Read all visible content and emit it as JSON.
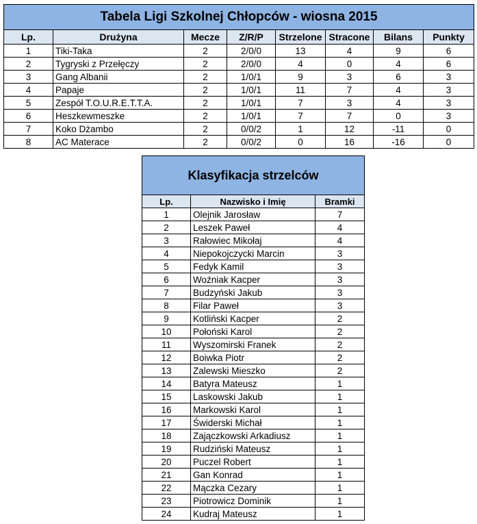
{
  "league": {
    "title": "Tabela Ligi Szkolnej Chłopców - wiosna 2015",
    "headers": [
      "Lp.",
      "Drużyna",
      "Mecze",
      "Z/R/P",
      "Strzelone",
      "Stracone",
      "Bilans",
      "Punkty"
    ],
    "rows": [
      [
        "1",
        "Tiki-Taka",
        "2",
        "2/0/0",
        "13",
        "4",
        "9",
        "6"
      ],
      [
        "2",
        "Tygryski z Przełęczy",
        "2",
        "2/0/0",
        "4",
        "0",
        "4",
        "6"
      ],
      [
        "3",
        "Gang Albanii",
        "2",
        "1/0/1",
        "9",
        "3",
        "6",
        "3"
      ],
      [
        "4",
        "Papaje",
        "2",
        "1/0/1",
        "11",
        "7",
        "4",
        "3"
      ],
      [
        "5",
        "Zespół T.O.U.R.E.T.T.A.",
        "2",
        "1/0/1",
        "7",
        "3",
        "4",
        "3"
      ],
      [
        "6",
        "Heszkewmeszke",
        "2",
        "1/0/1",
        "7",
        "7",
        "0",
        "3"
      ],
      [
        "7",
        "Koko Dżambo",
        "2",
        "0/0/2",
        "1",
        "12",
        "-11",
        "0"
      ],
      [
        "8",
        "AC Materace",
        "2",
        "0/0/2",
        "0",
        "16",
        "-16",
        "0"
      ]
    ]
  },
  "scorers": {
    "title": "Klasyfikacja strzelców",
    "headers": [
      "Lp.",
      "Nazwisko i Imię",
      "Bramki"
    ],
    "rows": [
      [
        "1",
        "Olejnik Jarosław",
        "7"
      ],
      [
        "2",
        "Leszek Paweł",
        "4"
      ],
      [
        "3",
        "Rałowiec Mikołaj",
        "4"
      ],
      [
        "4",
        "Niepokojczycki Marcin",
        "3"
      ],
      [
        "5",
        "Fedyk Kamil",
        "3"
      ],
      [
        "6",
        "Woźniak Kacper",
        "3"
      ],
      [
        "7",
        "Budzyński Jakub",
        "3"
      ],
      [
        "8",
        "Filar Paweł",
        "3"
      ],
      [
        "9",
        "Kotliński Kacper",
        "2"
      ],
      [
        "10",
        "Połoński Karol",
        "2"
      ],
      [
        "11",
        "Wyszomirski Franek",
        "2"
      ],
      [
        "12",
        "Boiwka Piotr",
        "2"
      ],
      [
        "13",
        "Zalewski Mieszko",
        "2"
      ],
      [
        "14",
        "Batyra Mateusz",
        "1"
      ],
      [
        "15",
        "Laskowski Jakub",
        "1"
      ],
      [
        "16",
        "Markowski Karol",
        "1"
      ],
      [
        "17",
        "Świderski Michał",
        "1"
      ],
      [
        "18",
        "Zajączkowski Arkadiusz",
        "1"
      ],
      [
        "19",
        "Rudziński Mateusz",
        "1"
      ],
      [
        "20",
        "Puczel Robert",
        "1"
      ],
      [
        "21",
        "Gan Konrad",
        "1"
      ],
      [
        "22",
        "Mączka Cezary",
        "1"
      ],
      [
        "23",
        "Piotrowicz Dominik",
        "1"
      ],
      [
        "24",
        "Kudraj Mateusz",
        "1"
      ]
    ]
  },
  "colors": {
    "title_bg": "#8db4e2",
    "header_bg": "#dce6f1"
  }
}
